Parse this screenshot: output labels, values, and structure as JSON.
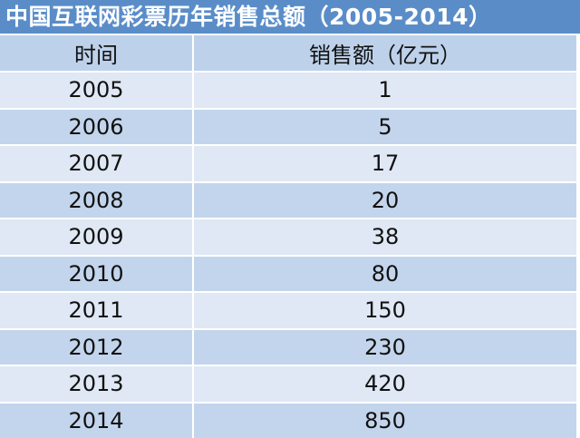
{
  "title": "中国互联网彩票历年销售总额（2005-2014）",
  "columns": [
    "时间",
    "销售额（亿元）"
  ],
  "rows": [
    {
      "year": "2005",
      "sales": "1"
    },
    {
      "year": "2006",
      "sales": "5"
    },
    {
      "year": "2007",
      "sales": "17"
    },
    {
      "year": "2008",
      "sales": "20"
    },
    {
      "year": "2009",
      "sales": "38"
    },
    {
      "year": "2010",
      "sales": "80"
    },
    {
      "year": "2011",
      "sales": "150"
    },
    {
      "year": "2012",
      "sales": "230"
    },
    {
      "year": "2013",
      "sales": "420"
    },
    {
      "year": "2014",
      "sales": "850"
    }
  ],
  "colors": {
    "title_bg": "#5a8dc8",
    "header_bg": "#bdd1ea",
    "row_light": "#dfe8f4",
    "row_dark": "#c3d5ec"
  }
}
